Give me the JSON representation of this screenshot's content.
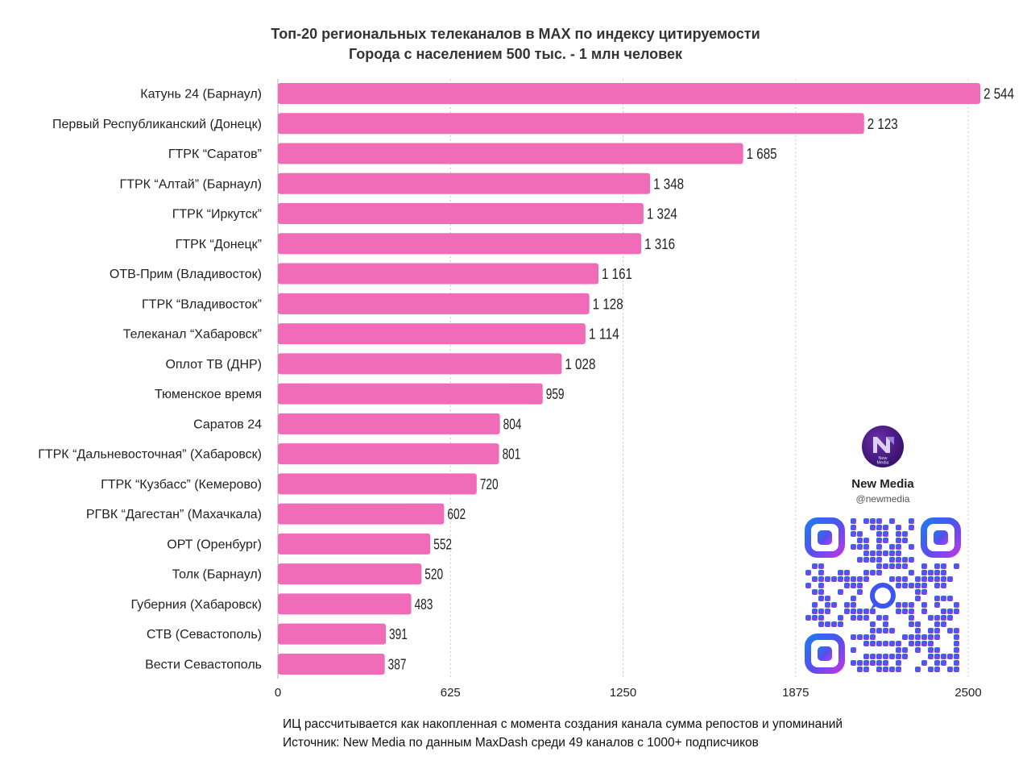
{
  "chart_data": {
    "type": "bar",
    "orientation": "horizontal",
    "title": "Топ-20 региональных телеканалов в MAX по индексу цитируемости",
    "subtitle": "Города с населением 500 тыс. - 1 млн человек",
    "categories": [
      "Катунь 24 (Барнаул)",
      "Первый Республиканский (Донецк)",
      "ГТРК “Саратов”",
      "ГТРК “Алтай” (Барнаул)",
      "ГТРК “Иркутск”",
      "ГТРК “Донецк”",
      "ОТВ-Прим (Владивосток)",
      "ГТРК “Владивосток”",
      "Телеканал “Хабаровск”",
      "Оплот ТВ (ДНР)",
      "Тюменское время",
      "Саратов 24",
      "ГТРК “Дальневосточная” (Хабаровск)",
      "ГТРК “Кузбасс” (Кемерово)",
      "РГВК “Дагестан” (Махачкала)",
      "ОРТ (Оренбург)",
      "Толк (Барнаул)",
      "Губерния (Хабаровск)",
      "СТВ (Севастополь)",
      "Вести Севастополь"
    ],
    "values": [
      2544,
      2123,
      1685,
      1348,
      1324,
      1316,
      1161,
      1128,
      1114,
      1028,
      959,
      804,
      801,
      720,
      602,
      552,
      520,
      483,
      391,
      387
    ],
    "value_labels": [
      "2 544",
      "2 123",
      "1 685",
      "1 348",
      "1 324",
      "1 316",
      "1 161",
      "1 128",
      "1 114",
      "1 028",
      "959",
      "804",
      "801",
      "720",
      "602",
      "552",
      "520",
      "483",
      "391",
      "387"
    ],
    "xlim": [
      0,
      2500
    ],
    "xticks": [
      0,
      625,
      1250,
      1875,
      2500
    ],
    "xtick_labels": [
      "0",
      "625",
      "1250",
      "1875",
      "2500"
    ],
    "grid": "vertical dashed",
    "bar_color": "#f06bb8"
  },
  "footnote": {
    "line1": "ИЦ рассчитывается как накопленная с момента создания канала сумма репостов и упоминаний",
    "line2": "Источник: New Media по данным MaxDash среди 49 каналов с 1000+ подписчиков"
  },
  "brand": {
    "name": "New Media",
    "handle": "@newmedia",
    "logo_text": "New Media"
  }
}
